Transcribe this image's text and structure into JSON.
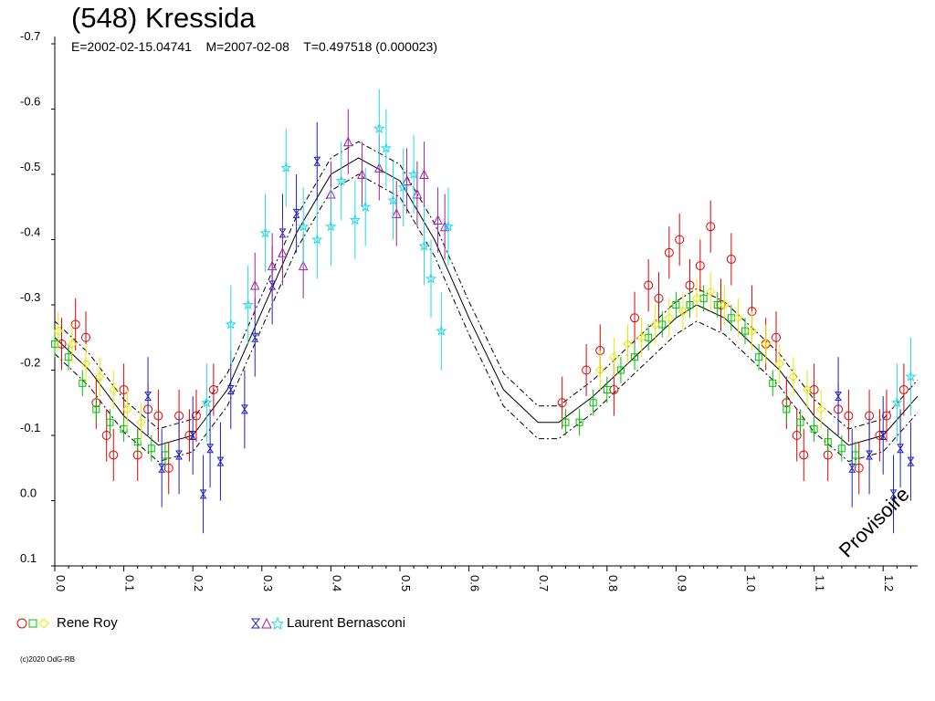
{
  "header": {
    "title": "(548) Kressida",
    "subtitle": "E=2002-02-15.04741    M=2007-02-08    T=0.497518 (0.000023)"
  },
  "legend": {
    "observers": [
      {
        "name": "Rene Roy",
        "symbols": [
          "circle",
          "square",
          "diamond"
        ],
        "colors": [
          "#e00000",
          "#00c000",
          "#e8e800"
        ]
      },
      {
        "name": "Laurent Bernasconi",
        "symbols": [
          "hourglass",
          "triangle",
          "star"
        ],
        "colors": [
          "#2020c0",
          "#a020a0",
          "#20d8e8"
        ]
      }
    ]
  },
  "stamp": "Provisoire",
  "copyright": "(c)2020 OdG-RB",
  "chart_data": {
    "type": "scatter",
    "title": "(548) Kressida",
    "xlim": [
      0.0,
      1.25
    ],
    "ylim": [
      0.1,
      -0.7
    ],
    "x_ticks": [
      "0.0",
      "0.1",
      "0.2",
      "0.3",
      "0.4",
      "0.5",
      "0.6",
      "0.7",
      "0.8",
      "0.9",
      "1.0",
      "1.1",
      "1.2"
    ],
    "y_ticks": [
      "-0.7",
      "-0.6",
      "-0.5",
      "-0.4",
      "-0.3",
      "-0.2",
      "-0.1",
      "0.0",
      "0.1"
    ],
    "fit_curve": {
      "style": "solid",
      "points": [
        [
          0.0,
          -0.25
        ],
        [
          0.05,
          -0.2
        ],
        [
          0.1,
          -0.13
        ],
        [
          0.15,
          -0.085
        ],
        [
          0.2,
          -0.1
        ],
        [
          0.25,
          -0.17
        ],
        [
          0.3,
          -0.29
        ],
        [
          0.35,
          -0.41
        ],
        [
          0.4,
          -0.5
        ],
        [
          0.44,
          -0.525
        ],
        [
          0.5,
          -0.49
        ],
        [
          0.55,
          -0.4
        ],
        [
          0.6,
          -0.28
        ],
        [
          0.65,
          -0.17
        ],
        [
          0.7,
          -0.12
        ],
        [
          0.73,
          -0.12
        ],
        [
          0.78,
          -0.16
        ],
        [
          0.85,
          -0.23
        ],
        [
          0.9,
          -0.28
        ],
        [
          0.93,
          -0.3
        ],
        [
          0.97,
          -0.28
        ],
        [
          1.0,
          -0.25
        ],
        [
          1.05,
          -0.2
        ],
        [
          1.1,
          -0.13
        ],
        [
          1.15,
          -0.085
        ],
        [
          1.2,
          -0.1
        ],
        [
          1.25,
          -0.16
        ]
      ],
      "band_offset": 0.025
    },
    "series": [
      {
        "name": "Rene Roy",
        "marker": "circle",
        "color": "#e00000",
        "x": [
          0.01,
          0.03,
          0.045,
          0.06,
          0.075,
          0.085,
          0.1,
          0.12,
          0.135,
          0.15,
          0.165,
          0.18,
          0.195,
          0.205,
          0.23,
          0.735,
          0.77,
          0.79,
          0.81,
          0.84,
          0.86,
          0.875,
          0.89,
          0.905,
          0.92,
          0.935,
          0.95,
          0.965,
          0.98,
          1.01,
          1.03,
          1.045,
          1.06,
          1.075,
          1.085,
          1.1,
          1.12,
          1.135,
          1.15,
          1.165,
          1.18,
          1.195,
          1.205,
          1.23
        ],
        "y": [
          -0.24,
          -0.27,
          -0.25,
          -0.15,
          -0.1,
          -0.07,
          -0.17,
          -0.07,
          -0.14,
          -0.13,
          -0.05,
          -0.13,
          -0.1,
          -0.13,
          -0.17,
          -0.15,
          -0.2,
          -0.23,
          -0.17,
          -0.28,
          -0.33,
          -0.31,
          -0.38,
          -0.4,
          -0.33,
          -0.36,
          -0.42,
          -0.3,
          -0.37,
          -0.29,
          -0.24,
          -0.25,
          -0.15,
          -0.1,
          -0.07,
          -0.17,
          -0.07,
          -0.14,
          -0.13,
          -0.05,
          -0.13,
          -0.1,
          -0.13,
          -0.17
        ]
      },
      {
        "name": "Rene Roy",
        "marker": "square",
        "color": "#00c000",
        "x": [
          0.0,
          0.02,
          0.04,
          0.06,
          0.08,
          0.1,
          0.12,
          0.14,
          0.16,
          0.74,
          0.76,
          0.78,
          0.8,
          0.82,
          0.84,
          0.86,
          0.88,
          0.9,
          0.92,
          0.94,
          0.96,
          0.98,
          1.0,
          1.02,
          1.04,
          1.06,
          1.08,
          1.1,
          1.12,
          1.14,
          1.16
        ],
        "y": [
          -0.24,
          -0.22,
          -0.18,
          -0.14,
          -0.12,
          -0.11,
          -0.09,
          -0.08,
          -0.07,
          -0.12,
          -0.12,
          -0.15,
          -0.17,
          -0.2,
          -0.22,
          -0.25,
          -0.27,
          -0.3,
          -0.3,
          -0.31,
          -0.3,
          -0.28,
          -0.26,
          -0.22,
          -0.18,
          -0.14,
          -0.12,
          -0.11,
          -0.09,
          -0.08,
          -0.07
        ]
      },
      {
        "name": "Rene Roy",
        "marker": "diamond",
        "color": "#e8e800",
        "x": [
          0.005,
          0.025,
          0.045,
          0.065,
          0.085,
          0.105,
          0.125,
          0.79,
          0.81,
          0.83,
          0.85,
          0.87,
          0.89,
          0.91,
          0.93,
          0.95,
          0.97,
          0.99,
          1.01,
          1.03,
          1.05,
          1.07,
          1.09,
          1.11
        ],
        "y": [
          -0.26,
          -0.24,
          -0.21,
          -0.19,
          -0.17,
          -0.14,
          -0.12,
          -0.2,
          -0.22,
          -0.24,
          -0.25,
          -0.27,
          -0.28,
          -0.29,
          -0.31,
          -0.32,
          -0.3,
          -0.28,
          -0.26,
          -0.24,
          -0.21,
          -0.19,
          -0.17,
          -0.14
        ]
      },
      {
        "name": "Laurent Bernasconi",
        "marker": "hourglass",
        "color": "#2020c0",
        "x": [
          0.135,
          0.155,
          0.18,
          0.2,
          0.215,
          0.225,
          0.24,
          0.255,
          0.275,
          0.29,
          0.315,
          0.33,
          0.35,
          0.38,
          1.135,
          1.155,
          1.18,
          1.2,
          1.215,
          1.225,
          1.24
        ],
        "y": [
          -0.16,
          -0.05,
          -0.07,
          -0.1,
          -0.01,
          -0.08,
          -0.06,
          -0.17,
          -0.14,
          -0.25,
          -0.33,
          -0.41,
          -0.44,
          -0.52,
          -0.16,
          -0.05,
          -0.07,
          -0.1,
          -0.01,
          -0.08,
          -0.06
        ]
      },
      {
        "name": "Laurent Bernasconi",
        "marker": "triangle",
        "color": "#a020a0",
        "x": [
          0.29,
          0.315,
          0.33,
          0.36,
          0.4,
          0.425,
          0.445,
          0.47,
          0.495,
          0.51,
          0.525,
          0.535,
          0.555,
          0.565
        ],
        "y": [
          -0.33,
          -0.36,
          -0.38,
          -0.36,
          -0.47,
          -0.55,
          -0.5,
          -0.51,
          -0.44,
          -0.49,
          -0.47,
          -0.5,
          -0.43,
          -0.42
        ]
      },
      {
        "name": "Laurent Bernasconi",
        "marker": "star",
        "color": "#20d8e8",
        "x": [
          0.22,
          0.255,
          0.28,
          0.305,
          0.335,
          0.36,
          0.38,
          0.4,
          0.415,
          0.435,
          0.45,
          0.47,
          0.48,
          0.49,
          0.505,
          0.52,
          0.535,
          0.545,
          0.56,
          0.57,
          1.22,
          1.24
        ],
        "y": [
          -0.15,
          -0.27,
          -0.3,
          -0.41,
          -0.51,
          -0.42,
          -0.4,
          -0.42,
          -0.49,
          -0.43,
          -0.45,
          -0.57,
          -0.54,
          -0.46,
          -0.48,
          -0.5,
          -0.39,
          -0.34,
          -0.26,
          -0.42,
          -0.15,
          -0.19
        ]
      }
    ]
  }
}
